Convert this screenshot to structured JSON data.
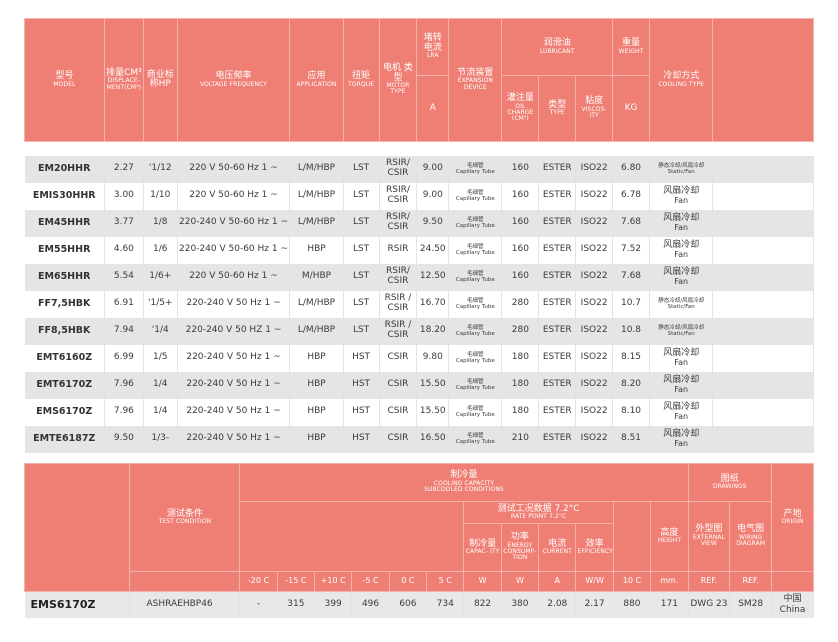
{
  "table1": {
    "headers": {
      "model": {
        "zh": "型号",
        "en": "MODEL"
      },
      "disp": {
        "zh": "排量CM³",
        "en": "DISPLACE- MENT(CM³)"
      },
      "hp": {
        "zh": "商业标",
        "en": "称HP"
      },
      "voltage": {
        "zh": "电压频率",
        "en": "VOLTAGE FREQUENCY"
      },
      "application": {
        "zh": "应用",
        "en": "APPLICATION"
      },
      "torque": {
        "zh": "扭矩",
        "en": "TORQUE"
      },
      "motor": {
        "zh": "电机 类型",
        "en": "MOTOR TYPE"
      },
      "lra": {
        "zh": "堵转 电流",
        "en": "LRA"
      },
      "lra_unit": "A",
      "expansion": {
        "zh": "节流装置",
        "en": "EXPANSION DEVICE"
      },
      "lubricant": {
        "zh": "润滑油",
        "en": "LUBRICANT"
      },
      "oil_charge": {
        "zh": "灌注量",
        "en": "OIL CHARGE (CM³)"
      },
      "oil_type": {
        "zh": "类型",
        "en": "TYPE"
      },
      "viscosity": {
        "zh": "粘度",
        "en": "VISCOS- ITY"
      },
      "weight": {
        "zh": "重量",
        "en": "WEIGHT"
      },
      "weight_unit": "KG",
      "cooling": {
        "zh": "冷却方式",
        "en": "COOLING TYPE"
      }
    },
    "rows": [
      {
        "model": "EM20HHR",
        "disp": "2.27",
        "hp": "'1/12",
        "voltage": "220 V 50-60 Hz 1 ~",
        "app": "L/M/HBP",
        "torque": "LST",
        "motor": "RSIR/ CSIR",
        "lra": "9.00",
        "exp_zh": "毛细管",
        "exp_en": "Capillary Tube",
        "oil": "160",
        "oil_type": "ESTER",
        "visc": "ISO22",
        "kg": "6.80",
        "cool_zh": "静态冷却/风扇冷却",
        "cool_en": "Static/Fan",
        "cool_small": true
      },
      {
        "model": "EMIS30HHR",
        "disp": "3.00",
        "hp": "1/10",
        "voltage": "220 V 50-60 Hz 1 ~",
        "app": "L/M/HBP",
        "torque": "LST",
        "motor": "RSIR/ CSIR",
        "lra": "9.00",
        "exp_zh": "毛细管",
        "exp_en": "Capillary Tube",
        "oil": "160",
        "oil_type": "ESTER",
        "visc": "ISO22",
        "kg": "6.78",
        "cool_zh": "风扇冷却",
        "cool_en": "Fan",
        "cool_small": false
      },
      {
        "model": "EM45HHR",
        "disp": "3.77",
        "hp": "1/8",
        "voltage": "220-240 V 50-60 Hz 1 ~",
        "app": "L/M/HBP",
        "torque": "LST",
        "motor": "RSIR/ CSIR",
        "lra": "9.50",
        "exp_zh": "毛细管",
        "exp_en": "Capillary Tube",
        "oil": "160",
        "oil_type": "ESTER",
        "visc": "ISO22",
        "kg": "7.68",
        "cool_zh": "风扇冷却",
        "cool_en": "Fan",
        "cool_small": false
      },
      {
        "model": "EM55HHR",
        "disp": "4.60",
        "hp": "1/6",
        "voltage": "220-240 V 50-60 Hz 1 ~",
        "app": "HBP",
        "torque": "LST",
        "motor": "RSIR",
        "lra": "24.50",
        "exp_zh": "毛细管",
        "exp_en": "Capillary Tube",
        "oil": "160",
        "oil_type": "ESTER",
        "visc": "ISO22",
        "kg": "7.52",
        "cool_zh": "风扇冷却",
        "cool_en": "Fan",
        "cool_small": false
      },
      {
        "model": "EM65HHR",
        "disp": "5.54",
        "hp": "1/6+",
        "voltage": "220 V 50-60 Hz 1 ~",
        "app": "M/HBP",
        "torque": "LST",
        "motor": "RSIR/ CSIR",
        "lra": "12.50",
        "exp_zh": "毛细管",
        "exp_en": "Capillary Tube",
        "oil": "160",
        "oil_type": "ESTER",
        "visc": "ISO22",
        "kg": "7.68",
        "cool_zh": "风扇冷却",
        "cool_en": "Fan",
        "cool_small": false
      },
      {
        "model": "FF7,5HBK",
        "disp": "6.91",
        "hp": "'1/5+",
        "voltage": "220-240 V 50 Hz 1 ~",
        "app": "L/M/HBP",
        "torque": "LST",
        "motor": "RSIR / CSIR",
        "lra": "16.70",
        "exp_zh": "毛细管",
        "exp_en": "Capillary Tube",
        "oil": "280",
        "oil_type": "ESTER",
        "visc": "ISO22",
        "kg": "10.7",
        "cool_zh": "静态冷却/风扇冷却",
        "cool_en": "Static/Fan",
        "cool_small": true
      },
      {
        "model": "FF8,5HBK",
        "disp": "7.94",
        "hp": "'1/4",
        "voltage": "220-240 V 50 HZ 1 ~",
        "app": "L/M/HBP",
        "torque": "LST",
        "motor": "RSIR / CSIR",
        "lra": "18.20",
        "exp_zh": "毛细管",
        "exp_en": "Capillary Tube",
        "oil": "280",
        "oil_type": "ESTER",
        "visc": "ISO22",
        "kg": "10.8",
        "cool_zh": "静态冷却/风扇冷却",
        "cool_en": "Static/Fan",
        "cool_small": true
      },
      {
        "model": "EMT6160Z",
        "disp": "6.99",
        "hp": "1/5",
        "voltage": "220-240 V 50 Hz 1 ~",
        "app": "HBP",
        "torque": "HST",
        "motor": "CSIR",
        "lra": "9.80",
        "exp_zh": "毛细管",
        "exp_en": "Capillary Tube",
        "oil": "180",
        "oil_type": "ESTER",
        "visc": "ISO22",
        "kg": "8.15",
        "cool_zh": "风扇冷却",
        "cool_en": "Fan",
        "cool_small": false
      },
      {
        "model": "EMT6170Z",
        "disp": "7.96",
        "hp": "1/4",
        "voltage": "220-240 V 50 Hz 1 ~",
        "app": "HBP",
        "torque": "HST",
        "motor": "CSIR",
        "lra": "15.50",
        "exp_zh": "毛细管",
        "exp_en": "Capillary Tube",
        "oil": "180",
        "oil_type": "ESTER",
        "visc": "ISO22",
        "kg": "8.20",
        "cool_zh": "风扇冷却",
        "cool_en": "Fan",
        "cool_small": false
      },
      {
        "model": "EMS6170Z",
        "disp": "7.96",
        "hp": "1/4",
        "voltage": "220-240 V 50 Hz 1 ~",
        "app": "HBP",
        "torque": "HST",
        "motor": "CSIR",
        "lra": "15.50",
        "exp_zh": "毛细管",
        "exp_en": "Capillary Tube",
        "oil": "180",
        "oil_type": "ESTER",
        "visc": "ISO22",
        "kg": "8.10",
        "cool_zh": "风扇冷却",
        "cool_en": "Fan",
        "cool_small": false
      },
      {
        "model": "EMTE6187Z",
        "disp": "9.50",
        "hp": "1/3-",
        "voltage": "220-240 V 50 Hz 1 ~",
        "app": "HBP",
        "torque": "HST",
        "motor": "CSIR",
        "lra": "16.50",
        "exp_zh": "毛细管",
        "exp_en": "Capillary Tube",
        "oil": "210",
        "oil_type": "ESTER",
        "visc": "ISO22",
        "kg": "8.51",
        "cool_zh": "风扇冷却",
        "cool_en": "Fan",
        "cool_small": false
      }
    ]
  },
  "table2": {
    "cooling_capacity": {
      "zh": "制冷量",
      "en1": "COOLING CAPACITY",
      "en2": "SUBCOOLED CONDITIONS"
    },
    "drawings": {
      "zh": "图纸",
      "en": "DRAWINGS"
    },
    "test_condition": {
      "zh": "测试条件",
      "en": "TEST CONDITION"
    },
    "rating_point": {
      "zh": "测试工况数据 7.2°C",
      "en": "RATE POINT 7.2°C"
    },
    "capacity": {
      "zh": "制冷量",
      "en": "CAPAC- ITY"
    },
    "power": {
      "zh": "功率",
      "en": "ENERGY CONSUMP- TION"
    },
    "current": {
      "zh": "电流",
      "en": "CURRENT"
    },
    "efficiency": {
      "zh": "效率",
      "en": "EFFICIENCY"
    },
    "height": {
      "zh": "高度",
      "en": "HEIGHT"
    },
    "external_view": {
      "zh": "外型图",
      "en": "EXTERNAL VIEW"
    },
    "wiring": {
      "zh": "电气图",
      "en": "WIRING DIAGRAM"
    },
    "origin": {
      "zh": "产地",
      "en": "ORIGIN"
    },
    "units": [
      "-20 C",
      "-15 C",
      "+10 C",
      "-5 C",
      "0 C",
      "5 C",
      "W",
      "W",
      "A",
      "W/W",
      "10 C",
      "mm.",
      "REF.",
      "REF."
    ],
    "row": {
      "model": "EMS6170Z",
      "test": "ASHRAEHBP46",
      "vals": [
        "-",
        "315",
        "399",
        "496",
        "606",
        "734",
        "822",
        "380",
        "2.08",
        "2.17",
        "880",
        "171"
      ],
      "dwg": "DWG 23",
      "wiring": "SM28",
      "origin_zh": "中国",
      "origin_en": "China"
    }
  }
}
